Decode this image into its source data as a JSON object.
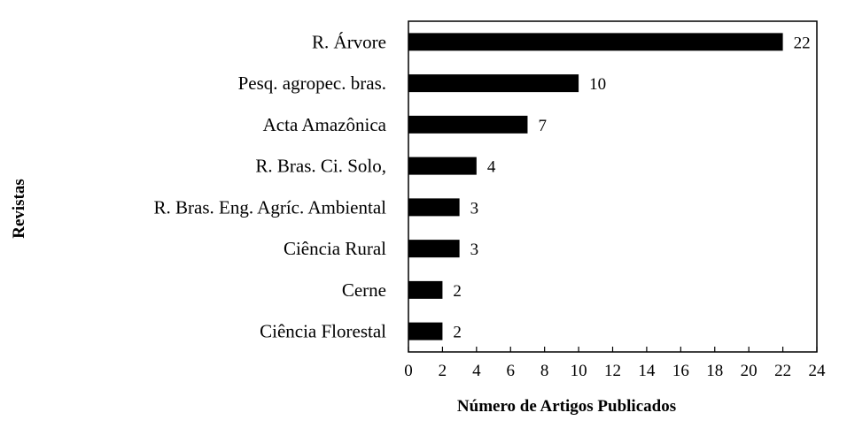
{
  "chart_data": {
    "type": "bar",
    "orientation": "horizontal",
    "categories": [
      "R. Árvore",
      "Pesq. agropec. bras.",
      "Acta Amazônica",
      "R. Bras. Ci. Solo,",
      "R. Bras. Eng. Agríc. Ambiental",
      "Ciência Rural",
      "Cerne",
      "Ciência Florestal"
    ],
    "values": [
      22,
      10,
      7,
      4,
      3,
      3,
      2,
      2
    ],
    "value_labels": [
      "22",
      "10",
      "7",
      "4",
      "3",
      "3",
      "2",
      "2"
    ],
    "xlabel": "Número de Artigos Publicados",
    "ylabel": "Revistas",
    "xlim": [
      0,
      24
    ],
    "xticks": [
      "0",
      "2",
      "4",
      "6",
      "8",
      "10",
      "12",
      "14",
      "16",
      "18",
      "20",
      "22",
      "24"
    ],
    "grid": false,
    "bar_color": "#000000"
  }
}
